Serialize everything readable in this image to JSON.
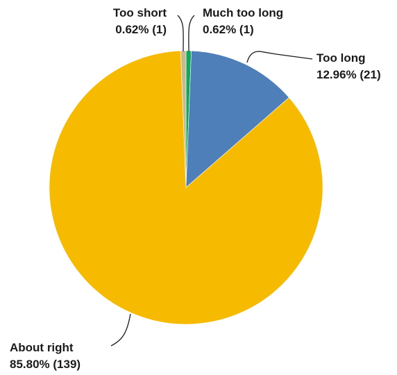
{
  "chart_data": {
    "type": "pie",
    "title": "",
    "slices": [
      {
        "label": "Much too long",
        "value_text": "0.62% (1)",
        "percent": 0.62,
        "count": 1,
        "color": "#12a85a"
      },
      {
        "label": "Too long",
        "value_text": "12.96% (21)",
        "percent": 12.96,
        "count": 21,
        "color": "#4f7fb8"
      },
      {
        "label": "About right",
        "value_text": "85.80% (139)",
        "percent": 85.8,
        "count": 139,
        "color": "#f6bb00"
      },
      {
        "label": "Too short",
        "value_text": "0.62% (1)",
        "percent": 0.62,
        "count": 1,
        "color": "#c9b990"
      }
    ],
    "start_angle": "12 o'clock",
    "direction": "clockwise",
    "legend": "none"
  }
}
